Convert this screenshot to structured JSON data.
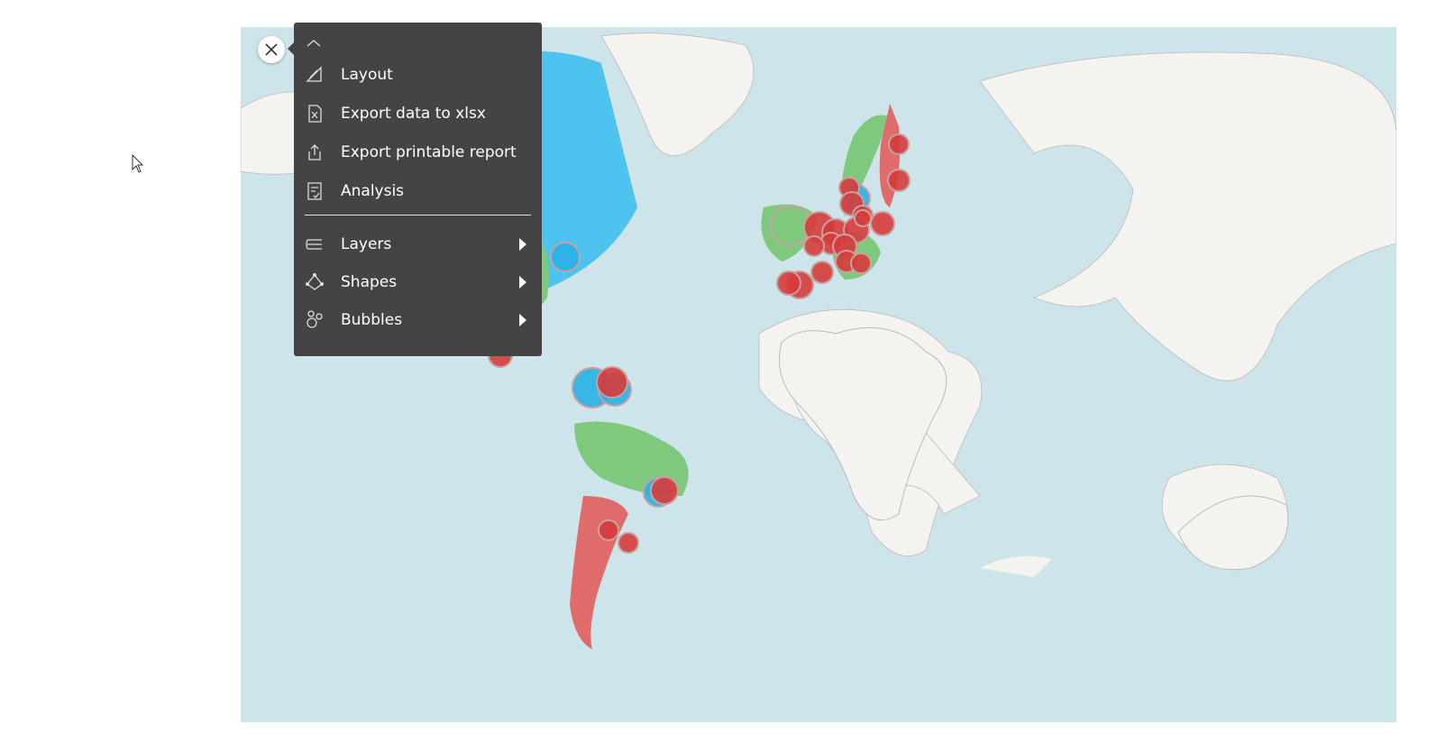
{
  "menu": {
    "items": [
      "Layout",
      "Export data to xlsx",
      "Export printable report",
      "Analysis"
    ],
    "submenus": [
      "Layers",
      "Shapes",
      "Bubbles"
    ]
  }
}
